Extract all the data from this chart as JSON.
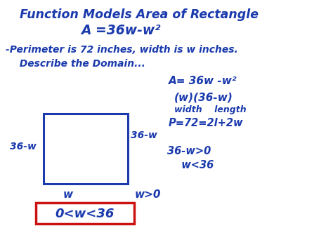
{
  "bg_color": "#ffffff",
  "text_color": "#1a3aad",
  "red_color": "#cc1111",
  "title_line1": "Function Models Area of Rectangle",
  "title_line2": "A =36w-w²",
  "line3": "-Perimeter is 72 inches, width is w inches.",
  "line4": "  Describe the Domain...",
  "right_a": "A= 36w -w²",
  "right_w36w": "(w)(36-w)",
  "right_wl": "width    length",
  "right_p": "P=72=2l+2w",
  "right_36w": "36-w>0",
  "right_w36": "  w<36",
  "rect_label_left": "36-w",
  "rect_label_right": "36-w",
  "rect_label_bottom": "w",
  "label_w_gt_0": "w>0",
  "boxed_text": "0<w<36",
  "fig_w": 4.74,
  "fig_h": 3.55,
  "dpi": 100
}
